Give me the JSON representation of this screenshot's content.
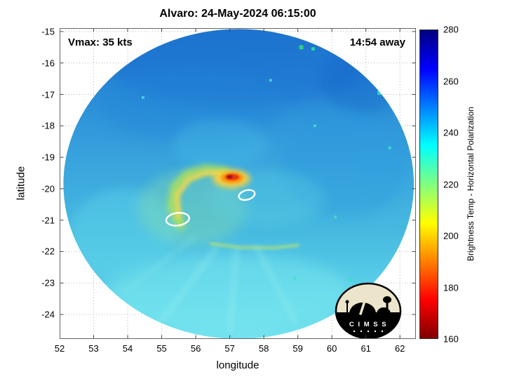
{
  "title": "Alvaro: 24-May-2024 06:15:00",
  "overlays": {
    "vmax_label": "Vmax: 35 kts",
    "eta_label": "14:54 away"
  },
  "axes": {
    "xlabel": "longitude",
    "ylabel": "latitude",
    "xlim": [
      52,
      62.47
    ],
    "ylim": [
      -24.78,
      -14.89
    ],
    "x_ticks": [
      52,
      53,
      54,
      55,
      56,
      57,
      58,
      59,
      60,
      61,
      62
    ],
    "y_ticks": [
      -15,
      -16,
      -17,
      -18,
      -19,
      -20,
      -21,
      -22,
      -23,
      -24
    ]
  },
  "colorbar": {
    "label": "Brightness Temp - Horizontal Polarization",
    "range": [
      160,
      280
    ],
    "ticks": [
      160,
      180,
      200,
      220,
      240,
      260,
      280
    ],
    "stops": [
      {
        "v": 160,
        "c": "#800000"
      },
      {
        "v": 175,
        "c": "#ff0000"
      },
      {
        "v": 190,
        "c": "#ff8000"
      },
      {
        "v": 205,
        "c": "#ffff00"
      },
      {
        "v": 220,
        "c": "#80ff80"
      },
      {
        "v": 235,
        "c": "#00ffff"
      },
      {
        "v": 250,
        "c": "#0080ff"
      },
      {
        "v": 265,
        "c": "#0000ff"
      },
      {
        "v": 280,
        "c": "#000080"
      }
    ]
  },
  "logo": {
    "text": "C I M S S"
  },
  "chart_data": {
    "type": "heatmap",
    "storm_name": "Alvaro",
    "timestamp": "24-May-2024 06:15:00",
    "vmax_kts": 35,
    "overpass_offset": "14:54 away",
    "title": "Alvaro: 24-May-2024 06:15:00",
    "xlabel": "longitude",
    "ylabel": "latitude",
    "xlim": [
      52,
      62.47
    ],
    "ylim": [
      -24.78,
      -14.89
    ],
    "value_label": "Brightness Temp - Horizontal Polarization",
    "value_range_K": [
      160,
      280
    ],
    "colormap": "jet reversed (cold cloud tops red, warm background blue)",
    "storm_center": {
      "lon": 57.1,
      "lat": -19.8
    },
    "coldest_cloud_tops": {
      "lon": 57.07,
      "lat": -19.64,
      "approx_value_K": 175
    },
    "background_env_value_K": 250,
    "swath": {
      "center_lon": 57.26,
      "center_lat": -19.85,
      "radius_lon_deg": 5.15,
      "radius_lat_deg": 4.93,
      "base_gradient": [
        {
          "pos": 0,
          "color": "#1f78cd"
        },
        {
          "pos": 0.22,
          "color": "#2b8ed8"
        },
        {
          "pos": 0.45,
          "color": "#3aa6dd"
        },
        {
          "pos": 0.65,
          "color": "#47b9e0"
        },
        {
          "pos": 0.82,
          "color": "#58cde7"
        },
        {
          "pos": 1,
          "color": "#74e3ef"
        }
      ]
    },
    "features": [
      {
        "kind": "blob",
        "lon": 57.3,
        "lat": -16.0,
        "rx": 3.9,
        "ry": 1.4,
        "color": "#1a6fd0",
        "opacity": 0.55,
        "blur": 10
      },
      {
        "kind": "blob",
        "lon": 55.9,
        "lat": -17.3,
        "rx": 2.7,
        "ry": 1.2,
        "color": "#2285d8",
        "opacity": 0.4,
        "blur": 10
      },
      {
        "kind": "blob",
        "lon": 60.9,
        "lat": -16.6,
        "rx": 1.2,
        "ry": 1.0,
        "color": "#1565c8",
        "opacity": 0.4,
        "blur": 8
      },
      {
        "kind": "blob",
        "lon": 60.4,
        "lat": -19.2,
        "rx": 1.9,
        "ry": 1.7,
        "color": "#2b97de",
        "opacity": 0.35,
        "blur": 8
      },
      {
        "kind": "blob",
        "lon": 57.0,
        "lat": -23.3,
        "rx": 3.6,
        "ry": 1.2,
        "color": "#7ae9ef",
        "opacity": 0.5,
        "blur": 10
      },
      {
        "kind": "blob",
        "lon": 53.9,
        "lat": -21.4,
        "rx": 1.6,
        "ry": 1.4,
        "color": "#63d9ec",
        "opacity": 0.4,
        "blur": 8
      },
      {
        "kind": "blob",
        "lon": 55.9,
        "lat": -20.6,
        "rx": 1.6,
        "ry": 1.2,
        "color": "#90e2a6",
        "opacity": 0.35,
        "blur": 8
      },
      {
        "kind": "blob",
        "lon": 58.1,
        "lat": -20.3,
        "rx": 1.7,
        "ry": 0.9,
        "color": "#5ed5e2",
        "opacity": 0.3,
        "blur": 8
      },
      {
        "kind": "blob",
        "lon": 56.7,
        "lat": -18.6,
        "rx": 1.4,
        "ry": 0.8,
        "color": "#49c0e8",
        "opacity": 0.35,
        "blur": 8
      },
      {
        "kind": "band",
        "points": [
          [
            55.55,
            -21.15
          ],
          [
            55.3,
            -20.55
          ],
          [
            55.4,
            -19.95
          ],
          [
            55.75,
            -19.55
          ],
          [
            56.3,
            -19.38
          ],
          [
            56.85,
            -19.45
          ]
        ],
        "width": 14,
        "color": "#b6e54e",
        "opacity": 0.75,
        "blur": 4
      },
      {
        "kind": "band",
        "points": [
          [
            55.5,
            -20.9
          ],
          [
            55.45,
            -20.2
          ],
          [
            55.8,
            -19.7
          ],
          [
            56.3,
            -19.5
          ],
          [
            56.7,
            -19.5
          ]
        ],
        "width": 7,
        "color": "#ffd84a",
        "opacity": 0.8,
        "blur": 3
      },
      {
        "kind": "band",
        "points": [
          [
            56.45,
            -21.75
          ],
          [
            57.3,
            -21.87
          ],
          [
            58.3,
            -21.88
          ],
          [
            59.0,
            -21.8
          ]
        ],
        "width": 4,
        "color": "#c9e85e",
        "opacity": 0.7,
        "blur": 2
      },
      {
        "kind": "streak",
        "from": [
          56.6,
          -21.9
        ],
        "to": [
          55.0,
          -24.2
        ],
        "width": 9,
        "color": "#9ef1ee",
        "opacity": 0.3,
        "blur": 4
      },
      {
        "kind": "streak",
        "from": [
          57.2,
          -22.0
        ],
        "to": [
          57.0,
          -24.5
        ],
        "width": 9,
        "color": "#9ef1ee",
        "opacity": 0.3,
        "blur": 4
      },
      {
        "kind": "streak",
        "from": [
          57.8,
          -21.9
        ],
        "to": [
          58.9,
          -24.2
        ],
        "width": 9,
        "color": "#9ef1ee",
        "opacity": 0.28,
        "blur": 4
      },
      {
        "kind": "streak",
        "from": [
          55.9,
          -21.6
        ],
        "to": [
          53.9,
          -23.3
        ],
        "width": 8,
        "color": "#8fe9ea",
        "opacity": 0.25,
        "blur": 4
      },
      {
        "kind": "blob",
        "lon": 57.05,
        "lat": -19.68,
        "rx": 0.55,
        "ry": 0.3,
        "color": "#ffd23a",
        "opacity": 0.9,
        "blur": 4
      },
      {
        "kind": "blob",
        "lon": 57.07,
        "lat": -19.65,
        "rx": 0.33,
        "ry": 0.17,
        "color": "#ff8a00",
        "opacity": 0.95,
        "blur": 2
      },
      {
        "kind": "blob",
        "lon": 57.07,
        "lat": -19.63,
        "rx": 0.2,
        "ry": 0.1,
        "color": "#e93412",
        "opacity": 1,
        "blur": 1
      },
      {
        "kind": "blob",
        "lon": 57.0,
        "lat": -19.62,
        "rx": 0.08,
        "ry": 0.05,
        "color": "#900f0a",
        "opacity": 1,
        "blur": 1
      },
      {
        "kind": "speckle",
        "lon": 59.1,
        "lat": -15.5,
        "size": 6,
        "color": "#3bdc72"
      },
      {
        "kind": "speckle",
        "lon": 59.45,
        "lat": -15.55,
        "size": 5,
        "color": "#2ee0a0"
      },
      {
        "kind": "speckle",
        "lon": 61.4,
        "lat": -16.95,
        "size": 6,
        "color": "#35dfc6"
      },
      {
        "kind": "speckle",
        "lon": 60.55,
        "lat": -22.9,
        "size": 5,
        "color": "#35dfc6"
      },
      {
        "kind": "speckle",
        "lon": 60.8,
        "lat": -23.05,
        "size": 4,
        "color": "#2ec9e9"
      },
      {
        "kind": "speckle",
        "lon": 54.45,
        "lat": -17.1,
        "size": 4,
        "color": "#49d8e8"
      },
      {
        "kind": "speckle",
        "lon": 61.7,
        "lat": -18.7,
        "size": 4,
        "color": "#40e0d0"
      },
      {
        "kind": "speckle",
        "lon": 59.5,
        "lat": -18.0,
        "size": 4,
        "color": "#47e0c8"
      },
      {
        "kind": "speckle",
        "lon": 58.2,
        "lat": -16.55,
        "size": 4,
        "color": "#47e0c8"
      },
      {
        "kind": "speckle",
        "lon": 55.2,
        "lat": -22.7,
        "size": 4,
        "color": "#5ae6da"
      },
      {
        "kind": "speckle",
        "lon": 60.1,
        "lat": -20.9,
        "size": 4,
        "color": "#45dcd2"
      },
      {
        "kind": "speckle",
        "lon": 58.9,
        "lat": -22.85,
        "size": 4,
        "color": "#45dcd2"
      },
      {
        "kind": "contour",
        "lon": 57.5,
        "lat": -20.2,
        "rx": 0.24,
        "ry": 0.15,
        "rot": -15
      },
      {
        "kind": "contour",
        "lon": 55.47,
        "lat": -20.97,
        "rx": 0.34,
        "ry": 0.2,
        "rot": -8
      }
    ]
  }
}
